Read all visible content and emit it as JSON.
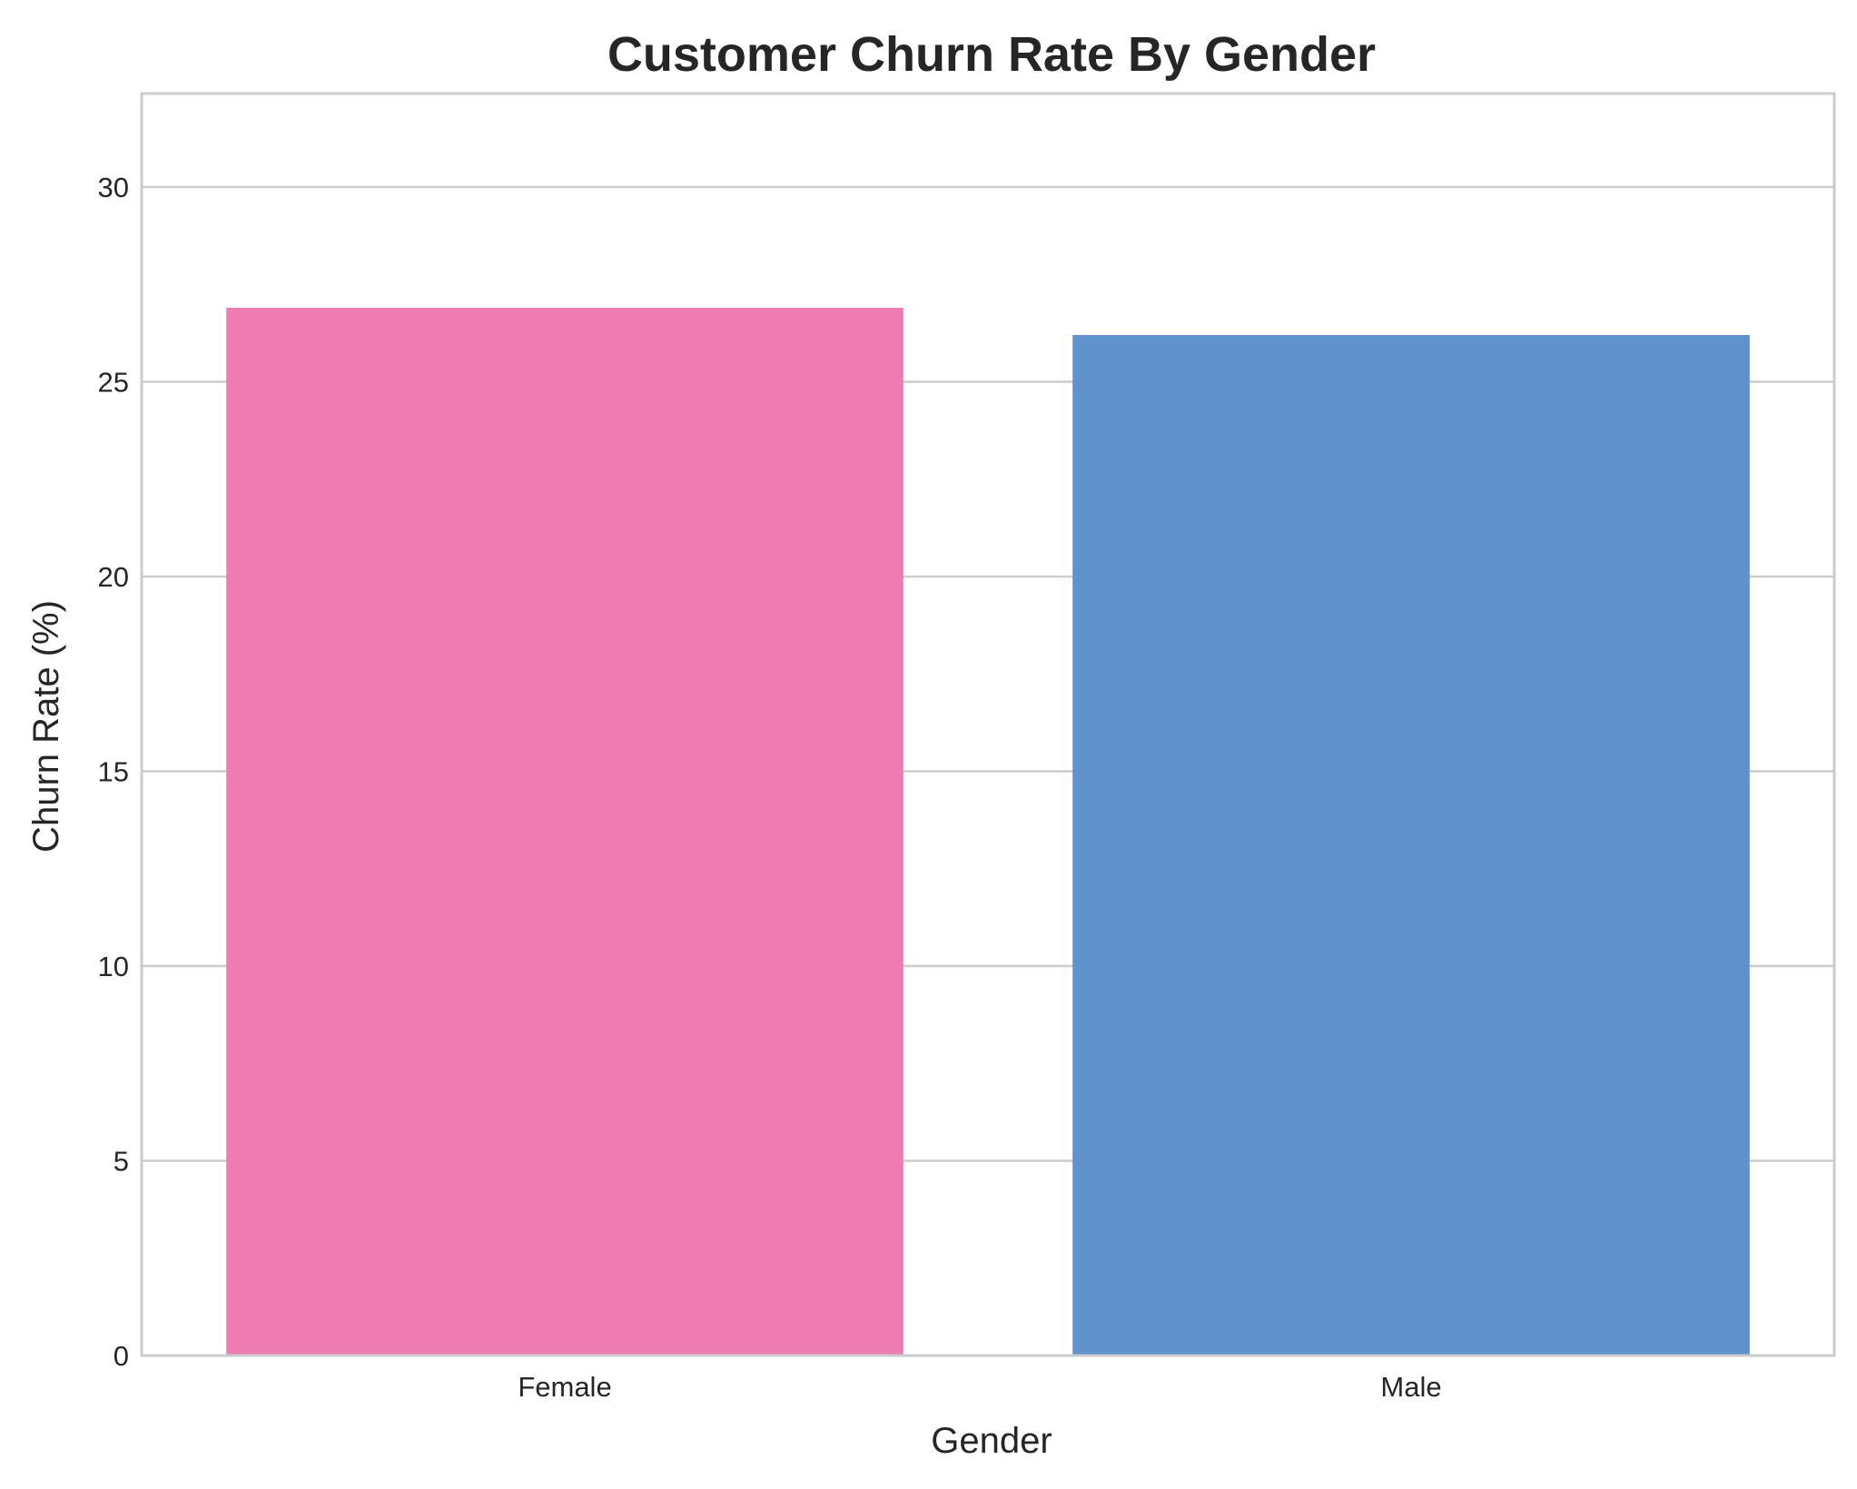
{
  "chart_data": {
    "type": "bar",
    "title": "Customer Churn Rate By Gender",
    "xlabel": "Gender",
    "ylabel": "Churn Rate (%)",
    "categories": [
      "Female",
      "Male"
    ],
    "values": [
      26.9,
      26.2
    ],
    "colors": [
      "#ec7cb2",
      "#6093cd"
    ],
    "ylim": [
      0,
      32.4
    ],
    "yticks": [
      0,
      5,
      10,
      15,
      20,
      25,
      30
    ],
    "grid": "horizontal",
    "legend": "none"
  }
}
